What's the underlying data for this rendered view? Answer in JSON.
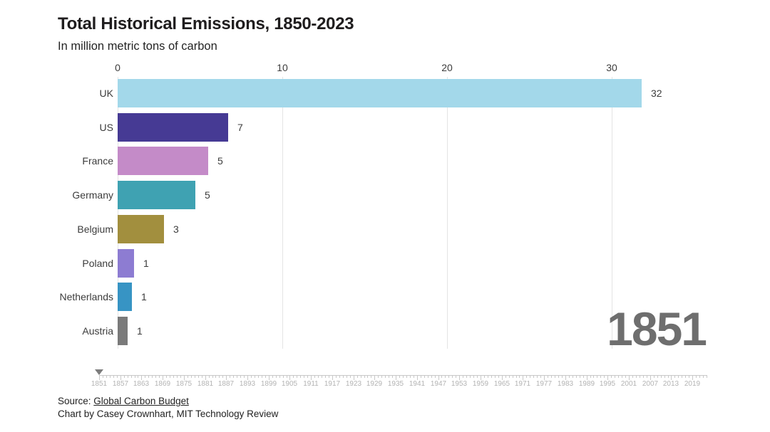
{
  "header": {
    "title": "Total Historical Emissions, 1850-2023",
    "subtitle": "In million metric tons of carbon"
  },
  "chart_data": {
    "type": "bar",
    "orientation": "horizontal",
    "title": "Total Historical Emissions, 1850-2023",
    "subtitle": "In million metric tons of carbon",
    "unit": "million metric tons of carbon",
    "current_year": "1851",
    "current_year_color": "#6e6e6e",
    "x_axis": {
      "ticks": [
        0,
        10,
        20,
        30
      ],
      "range": [
        0,
        35.7
      ],
      "position": "top"
    },
    "grid": {
      "vertical": true,
      "color": "#e4e4e4"
    },
    "categories": [
      "UK",
      "US",
      "France",
      "Germany",
      "Belgium",
      "Poland",
      "Netherlands",
      "Austria"
    ],
    "values": [
      32,
      7,
      5,
      5,
      3,
      1,
      1,
      1
    ],
    "bars": [
      {
        "label": "UK",
        "display_value": "32",
        "value_est": 31.8,
        "color": "#a3d8ea"
      },
      {
        "label": "US",
        "display_value": "7",
        "value_est": 6.7,
        "color": "#463a94"
      },
      {
        "label": "France",
        "display_value": "5",
        "value_est": 5.5,
        "color": "#c48bc8"
      },
      {
        "label": "Germany",
        "display_value": "5",
        "value_est": 4.7,
        "color": "#3fa2b2"
      },
      {
        "label": "Belgium",
        "display_value": "3",
        "value_est": 2.8,
        "color": "#a28f3e"
      },
      {
        "label": "Poland",
        "display_value": "1",
        "value_est": 1.0,
        "color": "#8d7cd2"
      },
      {
        "label": "Netherlands",
        "display_value": "1",
        "value_est": 0.87,
        "color": "#3794c4"
      },
      {
        "label": "Austria",
        "display_value": "1",
        "value_est": 0.6,
        "color": "#7a7a7a"
      }
    ]
  },
  "timeline": {
    "start_year": 1851,
    "end_year": 2023,
    "tick_every_years": 1,
    "label_every_years": 6,
    "marker_year": 1851,
    "labels": [
      "1851",
      "1857",
      "1863",
      "1869",
      "1875",
      "1881",
      "1887",
      "1893",
      "1899",
      "1905",
      "1911",
      "1917",
      "1923",
      "1929",
      "1935",
      "1941",
      "1947",
      "1953",
      "1959",
      "1965",
      "1971",
      "1977",
      "1983",
      "1989",
      "1995",
      "2001",
      "2007",
      "2013",
      "2019"
    ]
  },
  "footer": {
    "source_prefix": "Source: ",
    "source_link": "Global Carbon Budget",
    "credit": "Chart by Casey Crownhart, MIT Technology Review"
  }
}
